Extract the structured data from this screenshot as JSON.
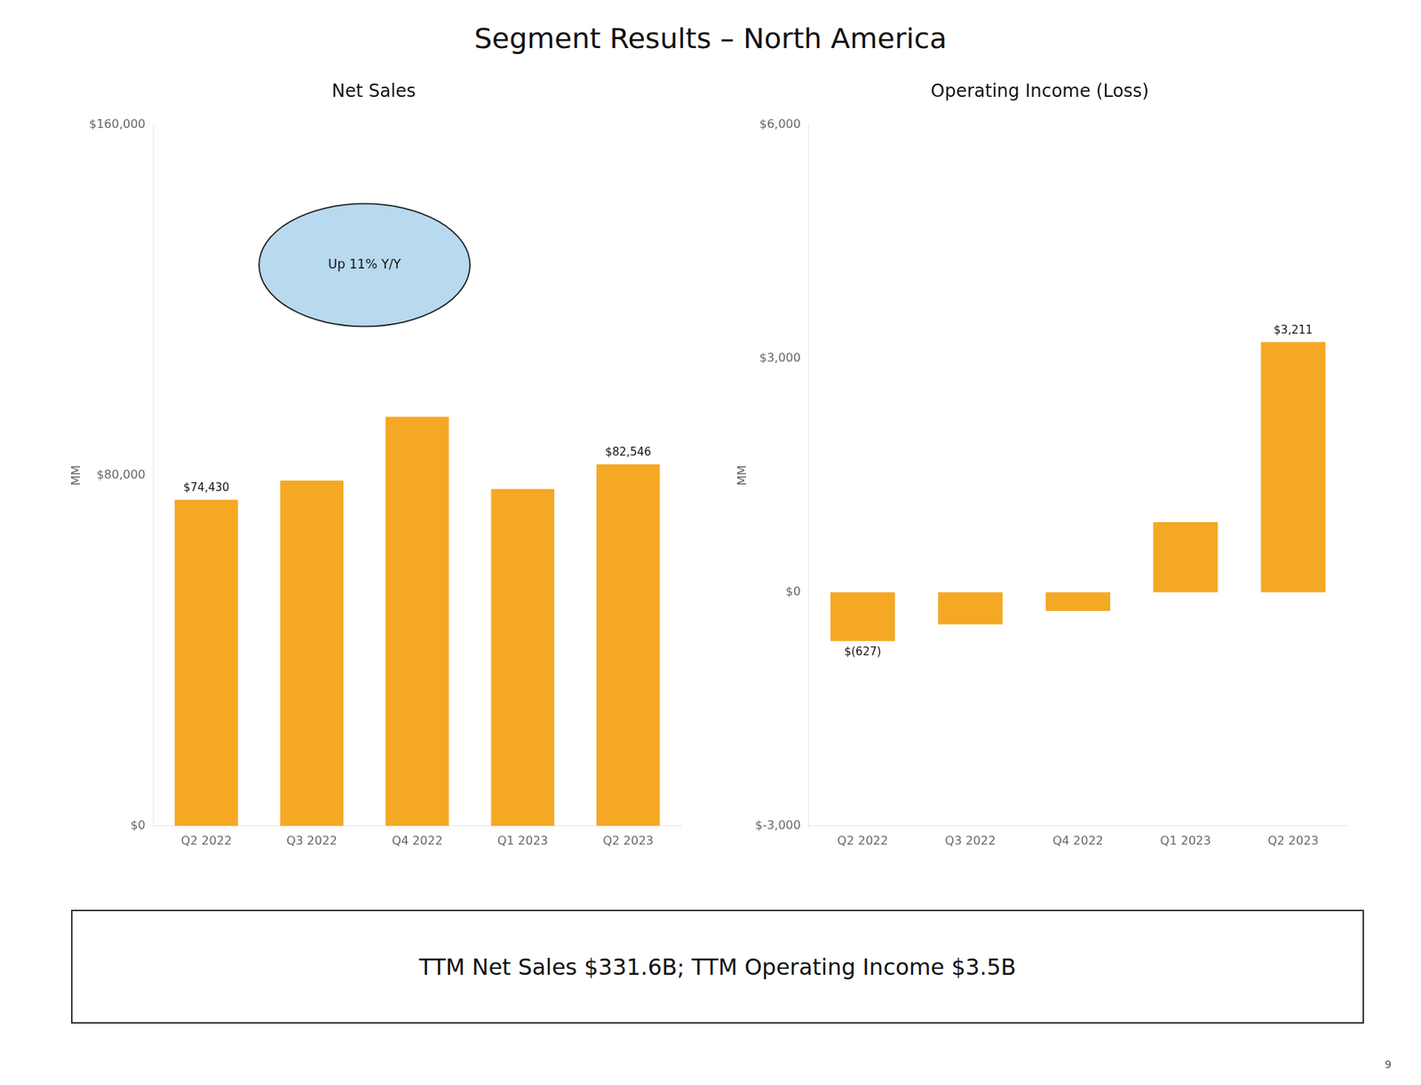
{
  "title": "Segment Results – North America",
  "annotations": [
    "TTM Net Sales $331.6B; TTM Operating Income $3.5B",
    "9"
  ],
  "chart_data": [
    {
      "type": "bar",
      "title": "Net Sales",
      "ylabel": "MM",
      "categories": [
        "Q2 2022",
        "Q3 2022",
        "Q4 2022",
        "Q1 2023",
        "Q2 2023"
      ],
      "values": [
        74430,
        78843,
        93363,
        76881,
        82546
      ],
      "color": "#f5a824",
      "ylim": [
        0,
        160000
      ],
      "yticks": [
        {
          "value": 0,
          "label": "$0"
        },
        {
          "value": 80000,
          "label": "$80,000"
        },
        {
          "value": 160000,
          "label": "$160,000"
        }
      ],
      "grid": false,
      "legend": false,
      "annotations": [
        {
          "text": "$74,430",
          "category": "Q2 2022",
          "value": 74430
        },
        {
          "text": "$82,546",
          "category": "Q2 2023",
          "value": 82546
        },
        {
          "text": "Up 11% Y/Y"
        }
      ]
    },
    {
      "type": "bar",
      "title": "Operating Income (Loss)",
      "ylabel": "MM",
      "categories": [
        "Q2 2022",
        "Q3 2022",
        "Q4 2022",
        "Q1 2023",
        "Q2 2023"
      ],
      "values": [
        -627,
        -412,
        -240,
        900,
        3211
      ],
      "color": "#f5a824",
      "ylim": [
        -3000,
        6000
      ],
      "yticks": [
        {
          "value": -3000,
          "label": "$-3,000"
        },
        {
          "value": 0,
          "label": "$0"
        },
        {
          "value": 3000,
          "label": "$3,000"
        },
        {
          "value": 6000,
          "label": "$6,000"
        }
      ],
      "grid": false,
      "legend": false,
      "annotations": [
        {
          "text": "$(627)",
          "category": "Q2 2022",
          "value": -627
        },
        {
          "text": "$3,211",
          "category": "Q2 2023",
          "value": 3211
        }
      ]
    }
  ]
}
